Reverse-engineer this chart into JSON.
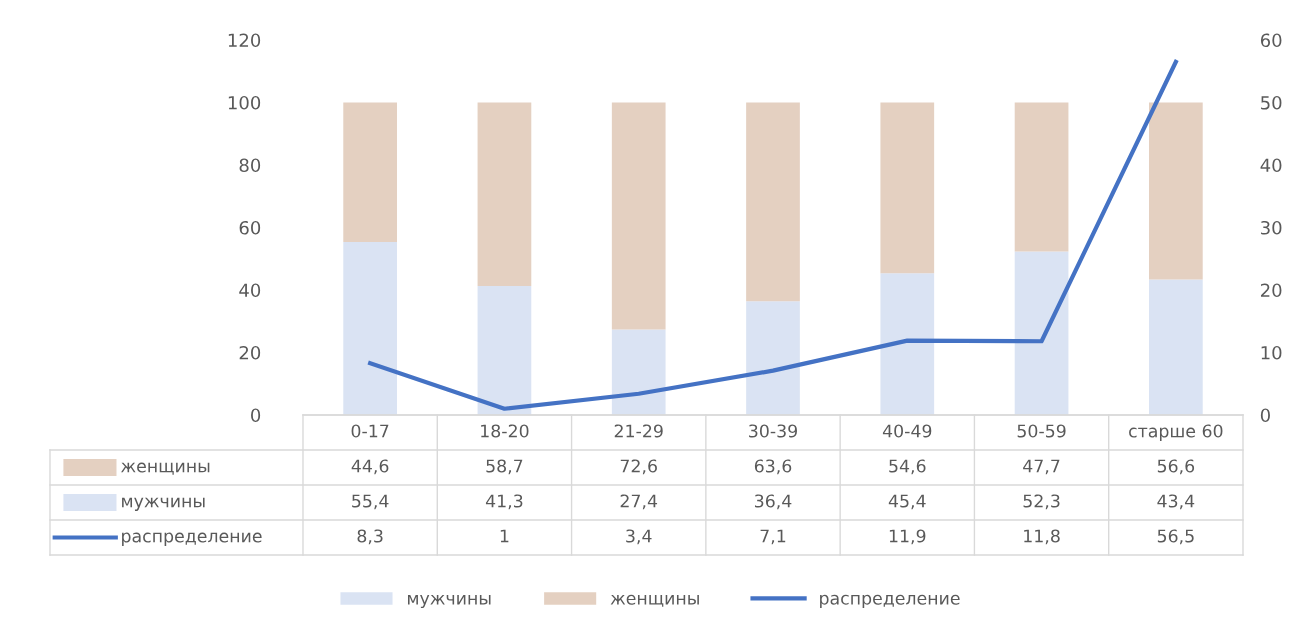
{
  "chart_data": {
    "type": "bar",
    "stacked": true,
    "categories": [
      "0-17",
      "18-20",
      "21-29",
      "30-39",
      "40-49",
      "50-59",
      "старше 60"
    ],
    "series": [
      {
        "name": "мужчины",
        "color": "#dae3f3",
        "values": [
          55.4,
          41.3,
          27.4,
          36.4,
          45.4,
          52.3,
          43.4
        ],
        "value_labels": [
          "55,4",
          "41,3",
          "27,4",
          "36,4",
          "45,4",
          "52,3",
          "43,4"
        ]
      },
      {
        "name": "женщины",
        "color": "#e4d0c1",
        "values": [
          44.6,
          58.7,
          72.6,
          63.6,
          54.6,
          47.7,
          56.6
        ],
        "value_labels": [
          "44,6",
          "58,7",
          "72,6",
          "63,6",
          "54,6",
          "47,7",
          "56,6"
        ]
      },
      {
        "name": "распределение",
        "type": "line",
        "axis": "y2",
        "color": "#4472c4",
        "values": [
          8.3,
          1,
          3.4,
          7.1,
          11.9,
          11.8,
          56.5
        ],
        "value_labels": [
          "8,3",
          "1",
          "3,4",
          "7,1",
          "11,9",
          "11,8",
          "56,5"
        ]
      }
    ],
    "ylim": [
      0,
      120
    ],
    "yticks": [
      0,
      20,
      40,
      60,
      80,
      100,
      120
    ],
    "y2lim": [
      0,
      60
    ],
    "y2ticks": [
      0,
      10,
      20,
      30,
      40,
      50,
      60
    ],
    "grid": false,
    "legend": "bottom",
    "marker": "none",
    "line_style": "solid"
  }
}
